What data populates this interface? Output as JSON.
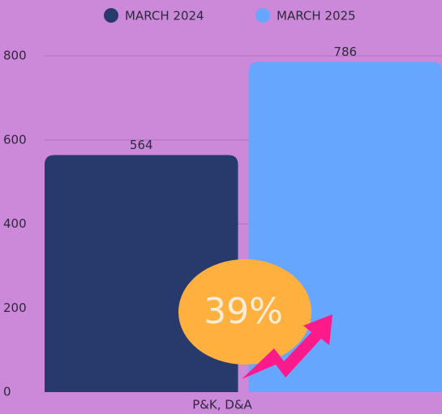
{
  "chart_data": {
    "type": "bar",
    "categories": [
      "P&K, D&A"
    ],
    "series": [
      {
        "name": "MARCH 2024",
        "color": "#283a6b",
        "values": [
          564
        ]
      },
      {
        "name": "MARCH 2025",
        "color": "#66a6ff",
        "values": [
          786
        ]
      }
    ],
    "ylim": [
      0,
      800
    ],
    "yticks": [
      0,
      200,
      400,
      600,
      800
    ],
    "grid": true,
    "legend": "top",
    "annotation": "39%"
  }
}
